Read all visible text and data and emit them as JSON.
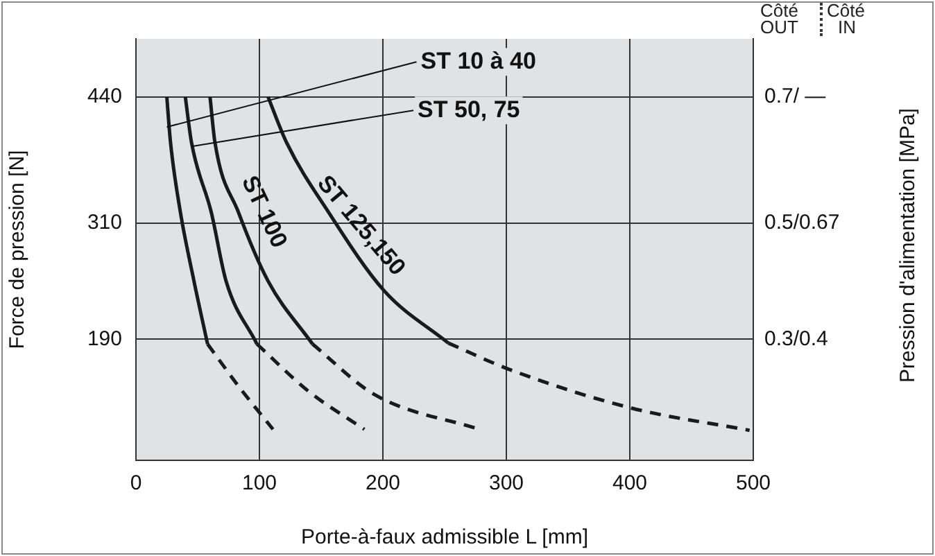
{
  "chart_data": {
    "type": "line",
    "xlabel": "Porte-à-faux admissible L [mm]",
    "ylabel": "Force de pression [N]",
    "xlim": [
      0,
      500
    ],
    "xticks": [
      0,
      100,
      200,
      300,
      400,
      500
    ],
    "ylim": [
      65,
      500
    ],
    "yticks": [
      190,
      310,
      440
    ],
    "grid": true,
    "legend": false,
    "marker": "none",
    "series": [
      {
        "color": "#1a1a1a",
        "line_style": "solid",
        "x": [
          25,
          28,
          36,
          47,
          58
        ],
        "values": [
          440,
          393,
          321,
          250,
          185
        ]
      },
      {
        "color": "#1a1a1a",
        "line_style": "dashed",
        "x": [
          58,
          84,
          111
        ],
        "values": [
          185,
          140,
          97
        ]
      },
      {
        "color": "#1a1a1a",
        "line_style": "solid",
        "x": [
          40,
          45,
          61,
          73,
          98
        ],
        "values": [
          440,
          393,
          321,
          250,
          185
        ]
      },
      {
        "color": "#1a1a1a",
        "line_style": "dashed",
        "x": [
          98,
          140,
          185
        ],
        "values": [
          185,
          136,
          97
        ]
      },
      {
        "color": "#1a1a1a",
        "line_style": "solid",
        "x": [
          60,
          64,
          83,
          107,
          143
        ],
        "values": [
          440,
          393,
          321,
          250,
          185
        ]
      },
      {
        "color": "#1a1a1a",
        "line_style": "dashed",
        "x": [
          143,
          193,
          278
        ],
        "values": [
          185,
          133,
          97
        ]
      },
      {
        "color": "#1a1a1a",
        "line_style": "solid",
        "x": [
          107,
          122,
          156,
          201,
          253
        ],
        "values": [
          440,
          393,
          321,
          240,
          186
        ]
      },
      {
        "color": "#1a1a1a",
        "line_style": "dashed",
        "x": [
          253,
          302,
          401,
          497
        ],
        "values": [
          186,
          159,
          119,
          96
        ]
      }
    ],
    "annotations": [
      {
        "text": "ST 10 à 40",
        "x": 25,
        "y": 409
      },
      {
        "text": "ST 50, 75",
        "x": 45,
        "y": 389
      },
      "ST 100",
      "ST 125,150",
      "Côté OUT",
      "Côté IN",
      "0.7/ —",
      "0.5/0.67",
      "0.3/0.4",
      "Pression d'alimentation [MPa]"
    ]
  }
}
